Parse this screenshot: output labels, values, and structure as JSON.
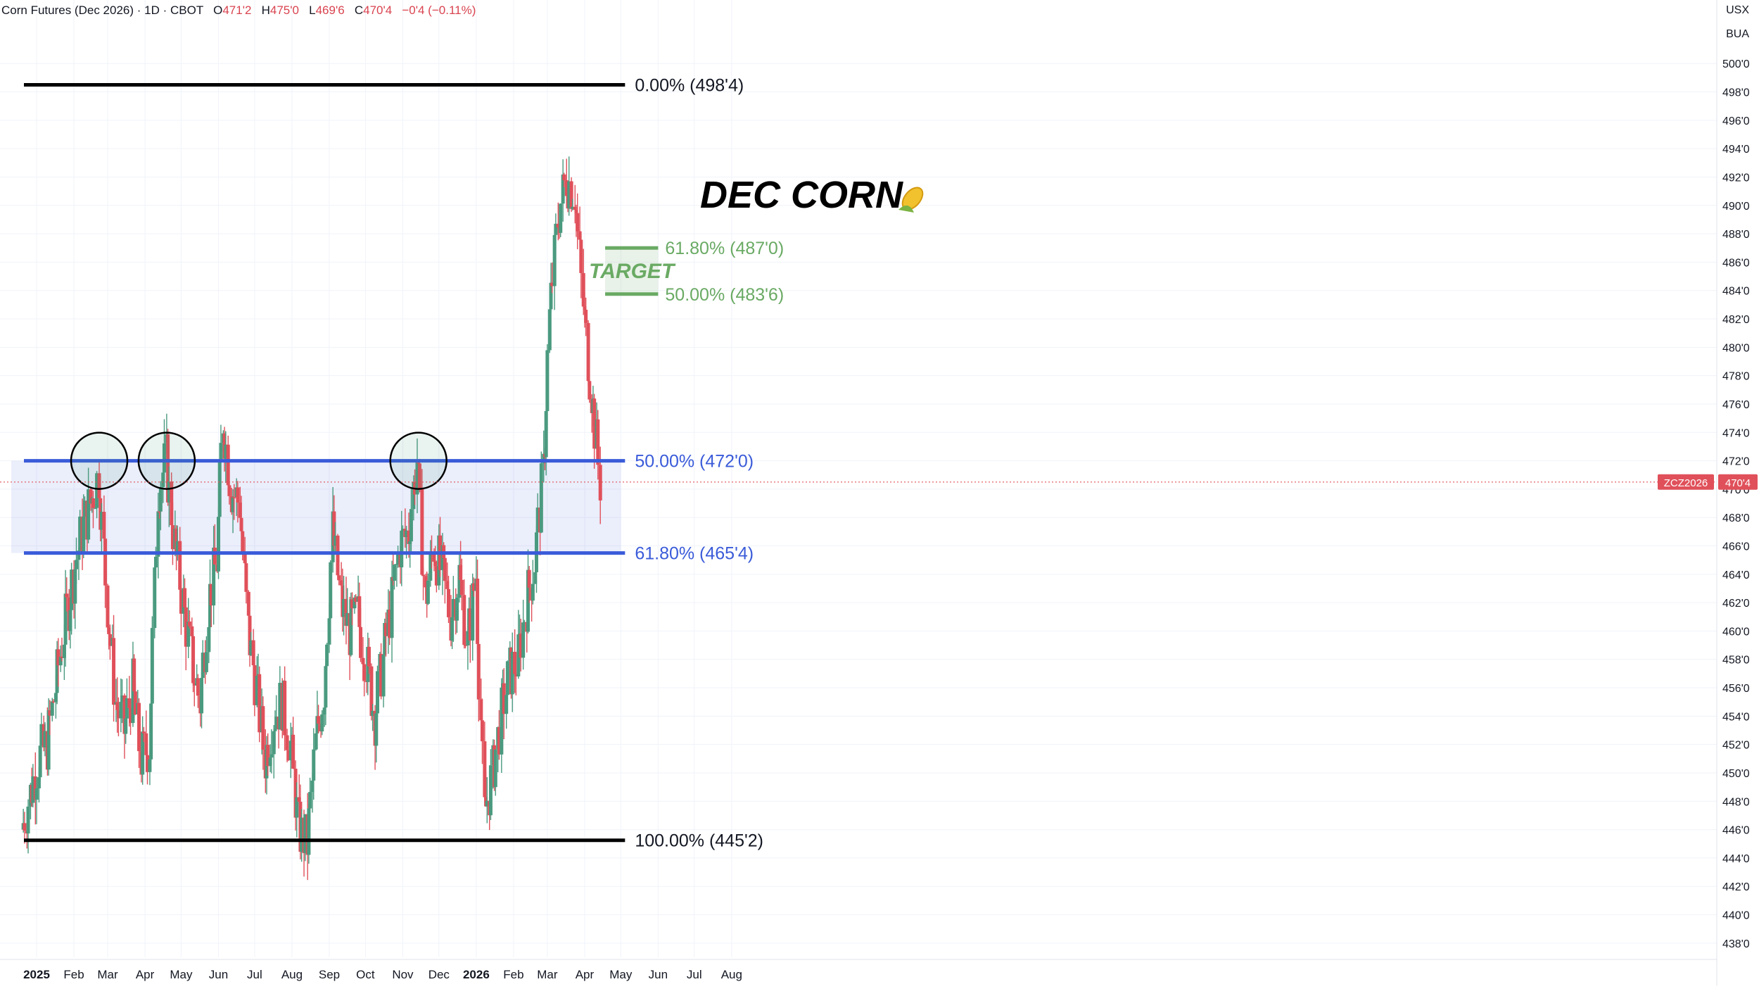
{
  "header": {
    "symbol_name": "Corn Futures (Dec 2026)",
    "interval": "1D",
    "exchange": "CBOT",
    "open_label": "O",
    "open": "471'2",
    "high_label": "H",
    "high": "475'0",
    "low_label": "L",
    "low": "469'6",
    "close_label": "C",
    "close": "470'4",
    "change": "−0'4 (−0.11%)",
    "currency": "USX",
    "unit": "BUA"
  },
  "chart_data": {
    "type": "candlestick",
    "title": "DEC CORN",
    "title_icon": "corn-icon",
    "ylim": [
      437,
      501.5
    ],
    "y_ticks": [
      "438'0",
      "440'0",
      "442'0",
      "444'0",
      "446'0",
      "448'0",
      "450'0",
      "452'0",
      "454'0",
      "456'0",
      "458'0",
      "460'0",
      "462'0",
      "464'0",
      "466'0",
      "468'0",
      "470'0",
      "472'0",
      "474'0",
      "476'0",
      "478'0",
      "480'0",
      "482'0",
      "484'0",
      "486'0",
      "488'0",
      "490'0",
      "492'0",
      "494'0",
      "496'0",
      "498'0",
      "500'0"
    ],
    "y_tick_values": [
      438,
      440,
      442,
      444,
      446,
      448,
      450,
      452,
      454,
      456,
      458,
      460,
      462,
      464,
      466,
      468,
      470,
      472,
      474,
      476,
      478,
      480,
      482,
      484,
      486,
      488,
      490,
      492,
      494,
      496,
      498,
      500
    ],
    "x_ticks": [
      {
        "label": "2025",
        "date": "2025-01-01",
        "bold": true
      },
      {
        "label": "Feb",
        "date": "2025-02-01"
      },
      {
        "label": "Mar",
        "date": "2025-03-01"
      },
      {
        "label": "Apr",
        "date": "2025-04-01"
      },
      {
        "label": "May",
        "date": "2025-05-01"
      },
      {
        "label": "Jun",
        "date": "2025-06-01"
      },
      {
        "label": "Jul",
        "date": "2025-07-01"
      },
      {
        "label": "Aug",
        "date": "2025-08-01"
      },
      {
        "label": "Sep",
        "date": "2025-09-01"
      },
      {
        "label": "Oct",
        "date": "2025-10-01"
      },
      {
        "label": "Nov",
        "date": "2025-11-01"
      },
      {
        "label": "Dec",
        "date": "2025-12-01"
      },
      {
        "label": "2026",
        "date": "2026-01-01",
        "bold": true
      },
      {
        "label": "Feb",
        "date": "2026-02-01"
      },
      {
        "label": "Mar",
        "date": "2026-03-01"
      },
      {
        "label": "Apr",
        "date": "2026-04-01"
      },
      {
        "label": "May",
        "date": "2026-05-01"
      },
      {
        "label": "Jun",
        "date": "2026-06-01"
      },
      {
        "label": "Jul",
        "date": "2026-07-01"
      },
      {
        "label": "Aug",
        "date": "2026-08-01"
      }
    ],
    "levels": [
      {
        "label": "0.00% (498'4)",
        "value": 498.5,
        "color": "#000000",
        "from": "2025-01-01",
        "to": "2026-05-01"
      },
      {
        "label": "50.00% (472'0)",
        "value": 472.0,
        "color": "#3a5bd9",
        "from": "2025-01-01",
        "to": "2026-05-01"
      },
      {
        "label": "61.80% (465'4)",
        "value": 465.5,
        "color": "#3a5bd9",
        "from": "2025-01-01",
        "to": "2026-05-01"
      },
      {
        "label": "100.00% (445'2)",
        "value": 445.25,
        "color": "#000000",
        "from": "2025-01-01",
        "to": "2026-05-01"
      }
    ],
    "zone": {
      "from_value": 465.5,
      "to_value": 472.0,
      "color": "#3a5bd9"
    },
    "target": {
      "label": "TARGET",
      "color": "#6aaa64",
      "from": "2026-04-18",
      "to": "2026-06-01",
      "levels": [
        {
          "label": "61.80% (487'0)",
          "value": 487.0
        },
        {
          "label": "50.00% (483'6)",
          "value": 483.75
        }
      ]
    },
    "circles": [
      {
        "date": "2025-02-22",
        "value": 472.0
      },
      {
        "date": "2025-04-19",
        "value": 472.0
      },
      {
        "date": "2025-11-14",
        "value": 472.0
      }
    ],
    "current_price": {
      "symbol": "ZCZ2026",
      "value": 470.5,
      "label": "470'4"
    },
    "series": [
      {
        "date": "2024-12-20",
        "close": 446
      },
      {
        "date": "2025-01-03",
        "close": 451
      },
      {
        "date": "2025-01-10",
        "close": 452
      },
      {
        "date": "2025-01-17",
        "close": 456
      },
      {
        "date": "2025-01-24",
        "close": 460
      },
      {
        "date": "2025-02-01",
        "close": 464
      },
      {
        "date": "2025-02-08",
        "close": 467
      },
      {
        "date": "2025-02-15",
        "close": 469
      },
      {
        "date": "2025-02-22",
        "close": 471
      },
      {
        "date": "2025-03-01",
        "close": 462
      },
      {
        "date": "2025-03-08",
        "close": 455
      },
      {
        "date": "2025-03-15",
        "close": 453
      },
      {
        "date": "2025-03-22",
        "close": 456
      },
      {
        "date": "2025-03-29",
        "close": 451
      },
      {
        "date": "2025-04-05",
        "close": 452
      },
      {
        "date": "2025-04-12",
        "close": 470
      },
      {
        "date": "2025-04-19",
        "close": 472
      },
      {
        "date": "2025-04-26",
        "close": 466
      },
      {
        "date": "2025-05-03",
        "close": 462
      },
      {
        "date": "2025-05-10",
        "close": 458
      },
      {
        "date": "2025-05-17",
        "close": 455
      },
      {
        "date": "2025-05-24",
        "close": 462
      },
      {
        "date": "2025-05-31",
        "close": 465
      },
      {
        "date": "2025-06-05",
        "close": 475
      },
      {
        "date": "2025-06-12",
        "close": 470
      },
      {
        "date": "2025-06-19",
        "close": 469
      },
      {
        "date": "2025-06-26",
        "close": 460
      },
      {
        "date": "2025-07-03",
        "close": 456
      },
      {
        "date": "2025-07-10",
        "close": 451
      },
      {
        "date": "2025-07-17",
        "close": 454
      },
      {
        "date": "2025-07-24",
        "close": 455
      },
      {
        "date": "2025-07-31",
        "close": 452
      },
      {
        "date": "2025-08-07",
        "close": 446
      },
      {
        "date": "2025-08-14",
        "close": 445
      },
      {
        "date": "2025-08-21",
        "close": 452
      },
      {
        "date": "2025-08-28",
        "close": 456
      },
      {
        "date": "2025-09-04",
        "close": 467
      },
      {
        "date": "2025-09-11",
        "close": 462
      },
      {
        "date": "2025-09-18",
        "close": 460
      },
      {
        "date": "2025-09-25",
        "close": 461
      },
      {
        "date": "2025-10-02",
        "close": 458
      },
      {
        "date": "2025-10-09",
        "close": 454
      },
      {
        "date": "2025-10-16",
        "close": 458
      },
      {
        "date": "2025-10-23",
        "close": 462
      },
      {
        "date": "2025-10-30",
        "close": 466
      },
      {
        "date": "2025-11-06",
        "close": 467
      },
      {
        "date": "2025-11-13",
        "close": 472
      },
      {
        "date": "2025-11-20",
        "close": 462
      },
      {
        "date": "2025-11-27",
        "close": 466
      },
      {
        "date": "2025-12-04",
        "close": 464
      },
      {
        "date": "2025-12-11",
        "close": 461
      },
      {
        "date": "2025-12-18",
        "close": 464
      },
      {
        "date": "2025-12-25",
        "close": 459
      },
      {
        "date": "2026-01-01",
        "close": 464
      },
      {
        "date": "2026-01-08",
        "close": 447
      },
      {
        "date": "2026-01-15",
        "close": 450
      },
      {
        "date": "2026-01-22",
        "close": 454
      },
      {
        "date": "2026-01-29",
        "close": 457
      },
      {
        "date": "2026-02-05",
        "close": 458
      },
      {
        "date": "2026-02-12",
        "close": 462
      },
      {
        "date": "2026-02-19",
        "close": 465
      },
      {
        "date": "2026-02-26",
        "close": 471
      },
      {
        "date": "2026-03-03",
        "close": 482
      },
      {
        "date": "2026-03-10",
        "close": 489
      },
      {
        "date": "2026-03-17",
        "close": 492
      },
      {
        "date": "2026-03-24",
        "close": 491
      },
      {
        "date": "2026-03-31",
        "close": 483
      },
      {
        "date": "2026-04-07",
        "close": 477
      },
      {
        "date": "2026-04-14",
        "close": 470.5
      }
    ]
  }
}
